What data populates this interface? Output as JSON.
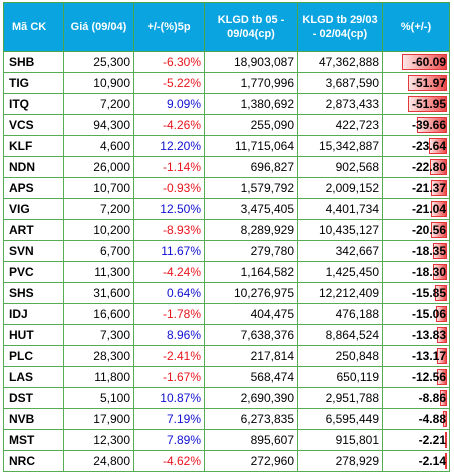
{
  "headers": [
    "Mã CK",
    "Giá (09/04)",
    "+/-(%)5p",
    "KLGD tb 05 - 09/04(cp)",
    "KLGD tb 29/03 - 02/04(cp)",
    "%(+/-)"
  ],
  "rows": [
    {
      "symbol": "SHB",
      "price": "25,300",
      "change5d": "-6.30%",
      "vol_week1": "18,903,087",
      "vol_week2": "47,362,888",
      "vol_change": "-60.09",
      "dir": "neg",
      "bar": 0.75
    },
    {
      "symbol": "TIG",
      "price": "10,900",
      "change5d": "-5.22%",
      "vol_week1": "1,770,996",
      "vol_week2": "3,687,590",
      "vol_change": "-51.97",
      "dir": "neg",
      "bar": 0.65
    },
    {
      "symbol": "ITQ",
      "price": "7,200",
      "change5d": "9.09%",
      "vol_week1": "1,380,692",
      "vol_week2": "2,873,433",
      "vol_change": "-51.95",
      "dir": "pos",
      "bar": 0.65
    },
    {
      "symbol": "VCS",
      "price": "94,300",
      "change5d": "-4.26%",
      "vol_week1": "255,090",
      "vol_week2": "422,723",
      "vol_change": "-39.66",
      "dir": "neg",
      "bar": 0.5
    },
    {
      "symbol": "KLF",
      "price": "4,600",
      "change5d": "12.20%",
      "vol_week1": "11,715,064",
      "vol_week2": "15,342,887",
      "vol_change": "-23.64",
      "dir": "pos",
      "bar": 0.3
    },
    {
      "symbol": "NDN",
      "price": "26,000",
      "change5d": "-1.14%",
      "vol_week1": "696,827",
      "vol_week2": "902,568",
      "vol_change": "-22.80",
      "dir": "neg",
      "bar": 0.28
    },
    {
      "symbol": "APS",
      "price": "10,700",
      "change5d": "-0.93%",
      "vol_week1": "1,579,792",
      "vol_week2": "2,009,152",
      "vol_change": "-21.37",
      "dir": "neg",
      "bar": 0.27
    },
    {
      "symbol": "VIG",
      "price": "7,200",
      "change5d": "12.50%",
      "vol_week1": "3,475,405",
      "vol_week2": "4,401,734",
      "vol_change": "-21.04",
      "dir": "pos",
      "bar": 0.26
    },
    {
      "symbol": "ART",
      "price": "10,200",
      "change5d": "-8.93%",
      "vol_week1": "8,289,929",
      "vol_week2": "10,435,127",
      "vol_change": "-20.56",
      "dir": "neg",
      "bar": 0.26
    },
    {
      "symbol": "SVN",
      "price": "6,700",
      "change5d": "11.67%",
      "vol_week1": "279,780",
      "vol_week2": "342,667",
      "vol_change": "-18.35",
      "dir": "pos",
      "bar": 0.23
    },
    {
      "symbol": "PVC",
      "price": "11,300",
      "change5d": "-4.24%",
      "vol_week1": "1,164,582",
      "vol_week2": "1,425,450",
      "vol_change": "-18.30",
      "dir": "neg",
      "bar": 0.23
    },
    {
      "symbol": "SHS",
      "price": "31,600",
      "change5d": "0.64%",
      "vol_week1": "10,276,975",
      "vol_week2": "12,212,409",
      "vol_change": "-15.85",
      "dir": "pos",
      "bar": 0.2
    },
    {
      "symbol": "IDJ",
      "price": "16,600",
      "change5d": "-1.78%",
      "vol_week1": "404,475",
      "vol_week2": "476,188",
      "vol_change": "-15.06",
      "dir": "neg",
      "bar": 0.19
    },
    {
      "symbol": "HUT",
      "price": "7,300",
      "change5d": "8.96%",
      "vol_week1": "7,638,376",
      "vol_week2": "8,864,524",
      "vol_change": "-13.83",
      "dir": "pos",
      "bar": 0.17
    },
    {
      "symbol": "PLC",
      "price": "28,300",
      "change5d": "-2.41%",
      "vol_week1": "217,814",
      "vol_week2": "250,848",
      "vol_change": "-13.17",
      "dir": "neg",
      "bar": 0.16
    },
    {
      "symbol": "LAS",
      "price": "11,800",
      "change5d": "-1.67%",
      "vol_week1": "568,474",
      "vol_week2": "650,119",
      "vol_change": "-12.56",
      "dir": "neg",
      "bar": 0.16
    },
    {
      "symbol": "DST",
      "price": "5,100",
      "change5d": "10.87%",
      "vol_week1": "2,690,390",
      "vol_week2": "2,951,788",
      "vol_change": "-8.86",
      "dir": "pos",
      "bar": 0.11
    },
    {
      "symbol": "NVB",
      "price": "17,900",
      "change5d": "7.19%",
      "vol_week1": "6,273,835",
      "vol_week2": "6,595,449",
      "vol_change": "-4.88",
      "dir": "pos",
      "bar": 0.06
    },
    {
      "symbol": "MST",
      "price": "12,300",
      "change5d": "7.89%",
      "vol_week1": "895,607",
      "vol_week2": "915,801",
      "vol_change": "-2.21",
      "dir": "pos",
      "bar": 0.03
    },
    {
      "symbol": "NRC",
      "price": "24,800",
      "change5d": "-4.62%",
      "vol_week1": "272,960",
      "vol_week2": "278,929",
      "vol_change": "-2.14",
      "dir": "neg",
      "bar": 0.03
    }
  ],
  "colors": {
    "header_bg": "#0aa4e0",
    "grid": "#54ad54",
    "negative": "#e8141c",
    "positive": "#1010d0",
    "bar": "#f37c7c"
  }
}
